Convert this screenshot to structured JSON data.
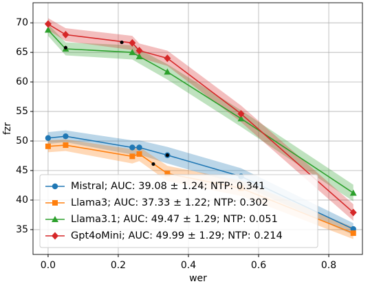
{
  "chart_data": {
    "type": "line",
    "xlabel": "wer",
    "ylabel": "fzr",
    "x": [
      0,
      0.05,
      0.24,
      0.26,
      0.34,
      0.55,
      0.87
    ],
    "series": [
      {
        "name": "Mistral; AUC: 39.08 ± 1.24; NTP: 0.341",
        "color": "#1f77b4",
        "marker": "circle",
        "values": [
          50.5,
          50.8,
          48.9,
          48.9,
          47.6,
          44.0,
          35.1
        ],
        "errors": [
          1.0,
          1.0,
          1.2,
          1.2,
          1.4,
          1.4,
          1.0
        ]
      },
      {
        "name": "Llama3; AUC: 37.33 ± 1.22; NTP: 0.302",
        "color": "#ff7f0e",
        "marker": "square",
        "values": [
          49.1,
          49.3,
          47.4,
          47.8,
          44.5,
          42.0,
          34.4
        ],
        "errors": [
          1.0,
          1.0,
          1.2,
          1.2,
          1.3,
          1.3,
          1.0
        ]
      },
      {
        "name": "Llama3.1; AUC: 49.47 ± 1.29; NTP: 0.051",
        "color": "#2ca02c",
        "marker": "triangle",
        "values": [
          68.8,
          65.6,
          65.0,
          64.3,
          61.7,
          53.8,
          41.2
        ],
        "errors": [
          1.0,
          1.1,
          1.2,
          1.2,
          1.3,
          1.4,
          1.4
        ]
      },
      {
        "name": "Gpt4oMini; AUC: 49.99 ± 1.29; NTP: 0.214",
        "color": "#d62728",
        "marker": "diamond",
        "values": [
          69.8,
          68.0,
          66.6,
          65.3,
          64.0,
          54.6,
          37.9
        ],
        "errors": [
          1.0,
          1.1,
          1.2,
          1.2,
          1.3,
          1.4,
          1.4
        ]
      }
    ],
    "points": {
      "color": "#000000",
      "x": [
        0.05,
        0.21,
        0.3,
        0.34
      ],
      "y": [
        65.8,
        66.7,
        46.1,
        47.6
      ]
    },
    "xlim": [
      -0.043,
      0.896
    ],
    "ylim": [
      30.8,
      73.4
    ],
    "xticks": [
      {
        "value": 0,
        "label": "0.0"
      },
      0.2,
      0.4,
      0.6,
      0.8
    ],
    "yticks": [
      35,
      40,
      45,
      50,
      55,
      60,
      65,
      70
    ],
    "grid": true,
    "legend": "lower-left"
  }
}
